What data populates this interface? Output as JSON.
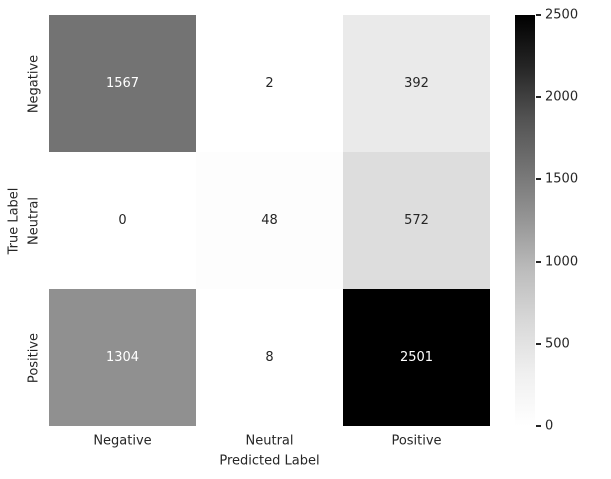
{
  "figure": {
    "background": "#ffffff",
    "text_color": "#262626"
  },
  "chart_data": {
    "type": "heatmap",
    "title": "",
    "xlabel": "Predicted Label",
    "ylabel": "True Label",
    "x_categories": [
      "Negative",
      "Neutral",
      "Positive"
    ],
    "y_categories": [
      "Negative",
      "Neutral",
      "Positive"
    ],
    "matrix": [
      [
        1567,
        2,
        392
      ],
      [
        0,
        48,
        572
      ],
      [
        1304,
        8,
        2501
      ]
    ],
    "vmin": 0,
    "vmax": 2501,
    "colormap": "Greys",
    "colormap_gray_stops": [
      255,
      240,
      217,
      189,
      150,
      115,
      82,
      37,
      0
    ],
    "annotation": {
      "light_text": "#ffffff",
      "dark_text": "#262626",
      "light_text_gray_threshold": 171
    },
    "colorbar": {
      "position": "right",
      "ticks": [
        "0",
        "500",
        "1000",
        "1500",
        "2000",
        "2500"
      ]
    },
    "grid": false,
    "legend": false
  }
}
